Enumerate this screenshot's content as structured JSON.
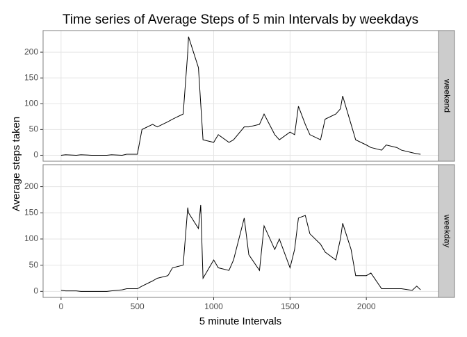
{
  "chart_data": {
    "type": "line",
    "title": "Time series of Average Steps of 5 min Intervals by weekdays",
    "x_label": "5 minute Intervals",
    "y_label": "Average steps taken",
    "x": [
      0,
      30,
      100,
      130,
      200,
      230,
      300,
      330,
      400,
      430,
      500,
      530,
      600,
      630,
      700,
      730,
      800,
      830,
      835,
      900,
      915,
      930,
      1000,
      1030,
      1100,
      1130,
      1200,
      1230,
      1300,
      1330,
      1400,
      1430,
      1500,
      1530,
      1555,
      1600,
      1630,
      1700,
      1730,
      1800,
      1830,
      1845,
      1900,
      1930,
      2000,
      2030,
      2100,
      2130,
      2200,
      2230,
      2300,
      2330,
      2355
    ],
    "series": [
      {
        "name": "weekend",
        "color": "#000000",
        "values": [
          0,
          1,
          0,
          1,
          0,
          0,
          0,
          1,
          0,
          2,
          2,
          50,
          60,
          55,
          65,
          70,
          80,
          200,
          230,
          170,
          100,
          30,
          25,
          40,
          25,
          30,
          55,
          55,
          60,
          80,
          40,
          30,
          45,
          40,
          95,
          60,
          40,
          30,
          70,
          80,
          90,
          115,
          60,
          30,
          20,
          15,
          10,
          20,
          15,
          10,
          5,
          3,
          2
        ]
      },
      {
        "name": "weekday",
        "color": "#000000",
        "values": [
          2,
          1,
          1,
          0,
          0,
          0,
          0,
          1,
          3,
          5,
          5,
          10,
          20,
          25,
          30,
          45,
          50,
          160,
          150,
          120,
          165,
          25,
          60,
          45,
          40,
          60,
          140,
          70,
          40,
          125,
          80,
          100,
          45,
          80,
          140,
          145,
          110,
          90,
          75,
          60,
          100,
          130,
          80,
          30,
          30,
          35,
          5,
          5,
          5,
          5,
          2,
          10,
          3
        ]
      }
    ],
    "xlim": [
      -117.75,
      2472.75
    ],
    "ylim": [
      -11.5,
      241.9
    ],
    "xticks": [
      0,
      500,
      1000,
      1500,
      2000
    ],
    "yticks": [
      0,
      50,
      100,
      150,
      200
    ],
    "grid": true
  }
}
